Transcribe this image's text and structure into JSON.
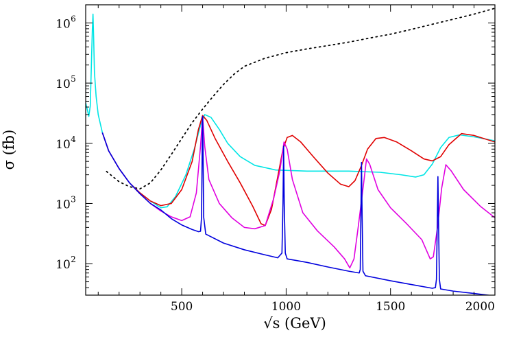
{
  "chart_data": {
    "type": "line",
    "title": "",
    "xlabel": "√s (GeV)",
    "ylabel": "σ (fb)",
    "xlim": [
      40,
      2000
    ],
    "ylim": [
      30,
      2000000
    ],
    "y_scale": "log",
    "x_ticks": [
      "500",
      "1000",
      "1500",
      "2000"
    ],
    "y_ticks": [
      {
        "base": "10",
        "exp": "2"
      },
      {
        "base": "10",
        "exp": "3"
      },
      {
        "base": "10",
        "exp": "4"
      },
      {
        "base": "10",
        "exp": "5"
      },
      {
        "base": "10",
        "exp": "6"
      }
    ],
    "series": [
      {
        "color": "#000000",
        "dash": "dotted",
        "points": [
          [
            140,
            3400
          ],
          [
            200,
            2300
          ],
          [
            250,
            1900
          ],
          [
            300,
            1750
          ],
          [
            350,
            2200
          ],
          [
            400,
            3600
          ],
          [
            450,
            6500
          ],
          [
            500,
            12000
          ],
          [
            550,
            22000
          ],
          [
            600,
            37000
          ],
          [
            650,
            60000
          ],
          [
            700,
            95000
          ],
          [
            750,
            140000
          ],
          [
            800,
            190000
          ],
          [
            900,
            260000
          ],
          [
            1000,
            320000
          ],
          [
            1100,
            370000
          ],
          [
            1200,
            420000
          ],
          [
            1300,
            480000
          ],
          [
            1400,
            560000
          ],
          [
            1500,
            650000
          ],
          [
            1600,
            780000
          ],
          [
            1700,
            950000
          ],
          [
            1800,
            1150000
          ],
          [
            1900,
            1400000
          ],
          [
            2000,
            1750000
          ]
        ]
      },
      {
        "color": "#00e5e5",
        "points": [
          [
            40,
            47000
          ],
          [
            48,
            36000
          ],
          [
            55,
            28000
          ],
          [
            62,
            42000
          ],
          [
            68,
            250000
          ],
          [
            72,
            800000
          ],
          [
            75,
            1400000
          ],
          [
            78,
            600000
          ],
          [
            82,
            150000
          ],
          [
            90,
            60000
          ],
          [
            100,
            30000
          ],
          [
            120,
            15000
          ],
          [
            150,
            7500
          ],
          [
            200,
            3800
          ],
          [
            250,
            2200
          ],
          [
            300,
            1500
          ],
          [
            350,
            1100
          ],
          [
            400,
            850
          ],
          [
            430,
            880
          ],
          [
            470,
            1300
          ],
          [
            520,
            3000
          ],
          [
            560,
            8000
          ],
          [
            590,
            20000
          ],
          [
            610,
            30000
          ],
          [
            640,
            27000
          ],
          [
            680,
            17000
          ],
          [
            720,
            10000
          ],
          [
            780,
            6000
          ],
          [
            850,
            4300
          ],
          [
            950,
            3600
          ],
          [
            1100,
            3450
          ],
          [
            1300,
            3450
          ],
          [
            1450,
            3300
          ],
          [
            1550,
            3000
          ],
          [
            1620,
            2750
          ],
          [
            1660,
            3000
          ],
          [
            1700,
            4500
          ],
          [
            1740,
            8500
          ],
          [
            1780,
            12500
          ],
          [
            1830,
            13800
          ],
          [
            1900,
            12800
          ],
          [
            2000,
            11000
          ]
        ]
      },
      {
        "color": "#e00000",
        "points": [
          [
            120,
            15000
          ],
          [
            150,
            7500
          ],
          [
            200,
            3800
          ],
          [
            250,
            2200
          ],
          [
            300,
            1500
          ],
          [
            350,
            1100
          ],
          [
            400,
            920
          ],
          [
            450,
            1000
          ],
          [
            500,
            1700
          ],
          [
            550,
            5000
          ],
          [
            580,
            17000
          ],
          [
            600,
            29000
          ],
          [
            620,
            24000
          ],
          [
            660,
            12000
          ],
          [
            720,
            5000
          ],
          [
            780,
            2200
          ],
          [
            840,
            900
          ],
          [
            880,
            460
          ],
          [
            900,
            430
          ],
          [
            930,
            800
          ],
          [
            960,
            2800
          ],
          [
            985,
            8000
          ],
          [
            1005,
            12500
          ],
          [
            1030,
            13500
          ],
          [
            1070,
            10500
          ],
          [
            1130,
            6000
          ],
          [
            1200,
            3200
          ],
          [
            1260,
            2100
          ],
          [
            1300,
            1900
          ],
          [
            1330,
            2400
          ],
          [
            1360,
            4200
          ],
          [
            1390,
            8000
          ],
          [
            1430,
            12000
          ],
          [
            1470,
            12500
          ],
          [
            1530,
            10500
          ],
          [
            1600,
            7500
          ],
          [
            1660,
            5500
          ],
          [
            1700,
            5100
          ],
          [
            1740,
            6000
          ],
          [
            1780,
            9500
          ],
          [
            1840,
            14500
          ],
          [
            1900,
            13500
          ],
          [
            2000,
            10500
          ]
        ]
      },
      {
        "color": "#e000e0",
        "points": [
          [
            120,
            15000
          ],
          [
            150,
            7500
          ],
          [
            200,
            3800
          ],
          [
            250,
            2200
          ],
          [
            300,
            1450
          ],
          [
            350,
            1000
          ],
          [
            400,
            750
          ],
          [
            450,
            600
          ],
          [
            500,
            520
          ],
          [
            540,
            600
          ],
          [
            570,
            1500
          ],
          [
            590,
            9000
          ],
          [
            600,
            28000
          ],
          [
            610,
            9000
          ],
          [
            630,
            2500
          ],
          [
            680,
            1000
          ],
          [
            740,
            580
          ],
          [
            800,
            400
          ],
          [
            850,
            380
          ],
          [
            900,
            430
          ],
          [
            940,
            1200
          ],
          [
            970,
            3500
          ],
          [
            990,
            10500
          ],
          [
            1005,
            8000
          ],
          [
            1030,
            2500
          ],
          [
            1080,
            700
          ],
          [
            1150,
            350
          ],
          [
            1230,
            190
          ],
          [
            1280,
            120
          ],
          [
            1305,
            85
          ],
          [
            1325,
            120
          ],
          [
            1345,
            400
          ],
          [
            1370,
            2000
          ],
          [
            1385,
            5500
          ],
          [
            1400,
            4500
          ],
          [
            1440,
            1700
          ],
          [
            1500,
            850
          ],
          [
            1580,
            450
          ],
          [
            1650,
            250
          ],
          [
            1690,
            120
          ],
          [
            1705,
            130
          ],
          [
            1725,
            400
          ],
          [
            1745,
            1800
          ],
          [
            1765,
            4400
          ],
          [
            1790,
            3500
          ],
          [
            1850,
            1700
          ],
          [
            1930,
            900
          ],
          [
            2000,
            580
          ]
        ]
      },
      {
        "color": "#0000dd",
        "points": [
          [
            120,
            15000
          ],
          [
            150,
            7500
          ],
          [
            200,
            3800
          ],
          [
            250,
            2200
          ],
          [
            300,
            1450
          ],
          [
            350,
            1000
          ],
          [
            400,
            780
          ],
          [
            450,
            560
          ],
          [
            500,
            440
          ],
          [
            550,
            370
          ],
          [
            580,
            340
          ],
          [
            590,
            345
          ],
          [
            595,
            600
          ],
          [
            598,
            8000
          ],
          [
            600,
            28000
          ],
          [
            602,
            8000
          ],
          [
            605,
            600
          ],
          [
            615,
            310
          ],
          [
            700,
            220
          ],
          [
            800,
            170
          ],
          [
            900,
            140
          ],
          [
            960,
            125
          ],
          [
            980,
            150
          ],
          [
            985,
            1000
          ],
          [
            988,
            9000
          ],
          [
            991,
            1000
          ],
          [
            996,
            150
          ],
          [
            1005,
            120
          ],
          [
            1100,
            105
          ],
          [
            1200,
            88
          ],
          [
            1300,
            75
          ],
          [
            1350,
            70
          ],
          [
            1355,
            80
          ],
          [
            1358,
            600
          ],
          [
            1361,
            4800
          ],
          [
            1364,
            600
          ],
          [
            1368,
            75
          ],
          [
            1380,
            63
          ],
          [
            1500,
            52
          ],
          [
            1600,
            45
          ],
          [
            1700,
            39
          ],
          [
            1715,
            40
          ],
          [
            1720,
            55
          ],
          [
            1724,
            500
          ],
          [
            1727,
            2800
          ],
          [
            1730,
            500
          ],
          [
            1734,
            55
          ],
          [
            1740,
            38
          ],
          [
            1800,
            35
          ],
          [
            1900,
            32
          ],
          [
            2000,
            29
          ]
        ]
      }
    ]
  }
}
